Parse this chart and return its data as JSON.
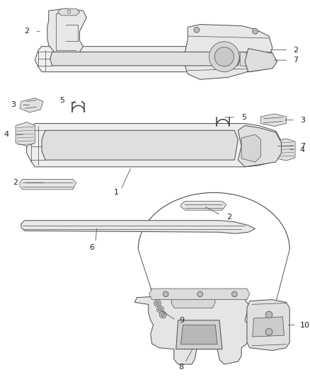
{
  "background_color": "#ffffff",
  "line_color": "#4a4a4a",
  "label_color": "#333333",
  "figsize": [
    4.38,
    5.33
  ],
  "dpi": 100
}
